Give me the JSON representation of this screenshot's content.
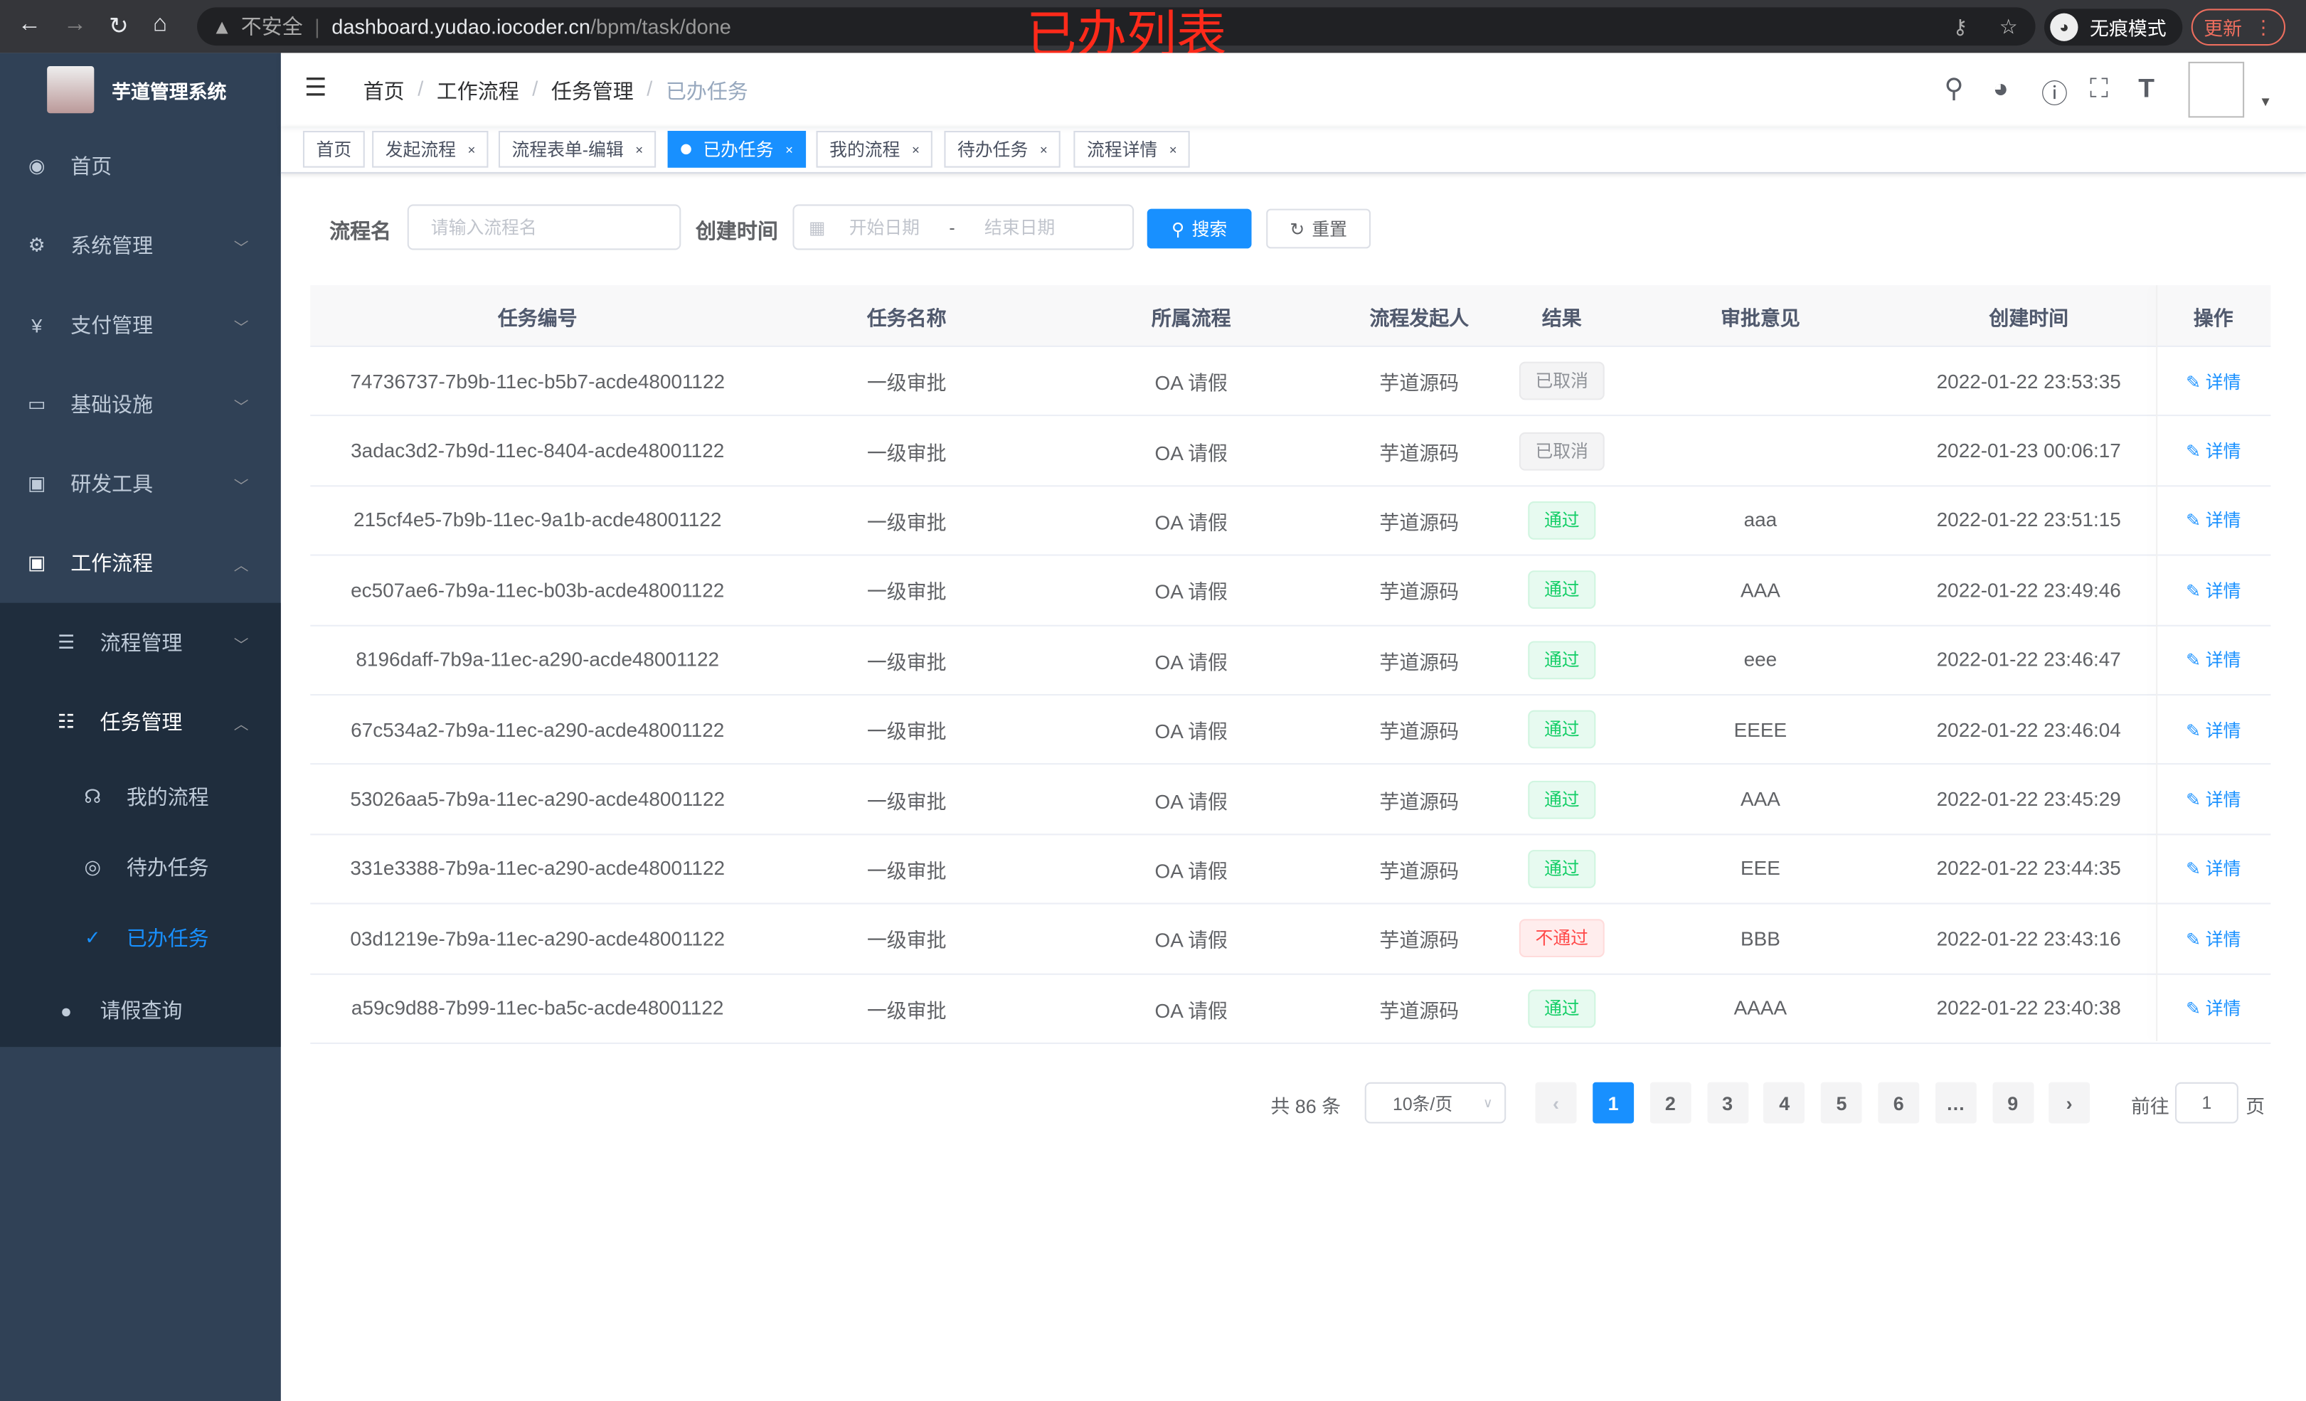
{
  "browser": {
    "url_host": "dashboard.yudao.iocoder.cn",
    "url_path": "/bpm/task/done",
    "security": "不安全",
    "incognito_label": "无痕模式",
    "update_label": "更新",
    "annotation": "已办列表"
  },
  "sidebar": {
    "app_title": "芋道管理系统",
    "items": [
      {
        "label": "首页",
        "icon": "dashboard-icon"
      },
      {
        "label": "系统管理",
        "icon": "gear-icon"
      },
      {
        "label": "支付管理",
        "icon": "yen-icon"
      },
      {
        "label": "基础设施",
        "icon": "monitor-icon"
      },
      {
        "label": "研发工具",
        "icon": "toolbox-icon"
      },
      {
        "label": "工作流程",
        "icon": "toolbox-icon"
      }
    ],
    "sub_items": [
      {
        "label": "流程管理",
        "icon": "tree-table-icon"
      },
      {
        "label": "任务管理",
        "icon": "list-icon"
      },
      {
        "label": "我的流程",
        "icon": "headset-icon"
      },
      {
        "label": "待办任务",
        "icon": "eye-icon"
      },
      {
        "label": "已办任务",
        "icon": "finish-icon"
      },
      {
        "label": "请假查询",
        "icon": "user-icon"
      }
    ]
  },
  "breadcrumb": [
    "首页",
    "工作流程",
    "任务管理",
    "已办任务"
  ],
  "tags": [
    "首页",
    "发起流程",
    "流程表单-编辑",
    "已办任务",
    "我的流程",
    "待办任务",
    "流程详情"
  ],
  "search": {
    "name_label": "流程名",
    "name_placeholder": "请输入流程名",
    "time_label": "创建时间",
    "start_placeholder": "开始日期",
    "range_sep": "-",
    "end_placeholder": "结束日期",
    "search_btn": "搜索",
    "reset_btn": "重置"
  },
  "table": {
    "headers": [
      "任务编号",
      "任务名称",
      "所属流程",
      "流程发起人",
      "结果",
      "审批意见",
      "创建时间",
      "操作"
    ],
    "action_label": "详情",
    "rows": [
      {
        "id": "74736737-7b9b-11ec-b5b7-acde48001122",
        "name": "一级审批",
        "process": "OA 请假",
        "starter": "芋道源码",
        "result": "已取消",
        "status": "cancel",
        "comment": "",
        "time": "2022-01-22 23:53:35"
      },
      {
        "id": "3adac3d2-7b9d-11ec-8404-acde48001122",
        "name": "一级审批",
        "process": "OA 请假",
        "starter": "芋道源码",
        "result": "已取消",
        "status": "cancel",
        "comment": "",
        "time": "2022-01-23 00:06:17"
      },
      {
        "id": "215cf4e5-7b9b-11ec-9a1b-acde48001122",
        "name": "一级审批",
        "process": "OA 请假",
        "starter": "芋道源码",
        "result": "通过",
        "status": "pass",
        "comment": "aaa",
        "time": "2022-01-22 23:51:15"
      },
      {
        "id": "ec507ae6-7b9a-11ec-b03b-acde48001122",
        "name": "一级审批",
        "process": "OA 请假",
        "starter": "芋道源码",
        "result": "通过",
        "status": "pass",
        "comment": "AAA",
        "time": "2022-01-22 23:49:46"
      },
      {
        "id": "8196daff-7b9a-11ec-a290-acde48001122",
        "name": "一级审批",
        "process": "OA 请假",
        "starter": "芋道源码",
        "result": "通过",
        "status": "pass",
        "comment": "eee",
        "time": "2022-01-22 23:46:47"
      },
      {
        "id": "67c534a2-7b9a-11ec-a290-acde48001122",
        "name": "一级审批",
        "process": "OA 请假",
        "starter": "芋道源码",
        "result": "通过",
        "status": "pass",
        "comment": "EEEE",
        "time": "2022-01-22 23:46:04"
      },
      {
        "id": "53026aa5-7b9a-11ec-a290-acde48001122",
        "name": "一级审批",
        "process": "OA 请假",
        "starter": "芋道源码",
        "result": "通过",
        "status": "pass",
        "comment": "AAA",
        "time": "2022-01-22 23:45:29"
      },
      {
        "id": "331e3388-7b9a-11ec-a290-acde48001122",
        "name": "一级审批",
        "process": "OA 请假",
        "starter": "芋道源码",
        "result": "通过",
        "status": "pass",
        "comment": "EEE",
        "time": "2022-01-22 23:44:35"
      },
      {
        "id": "03d1219e-7b9a-11ec-a290-acde48001122",
        "name": "一级审批",
        "process": "OA 请假",
        "starter": "芋道源码",
        "result": "不通过",
        "status": "fail",
        "comment": "BBB",
        "time": "2022-01-22 23:43:16"
      },
      {
        "id": "a59c9d88-7b99-11ec-ba5c-acde48001122",
        "name": "一级审批",
        "process": "OA 请假",
        "starter": "芋道源码",
        "result": "通过",
        "status": "pass",
        "comment": "AAAA",
        "time": "2022-01-22 23:40:38"
      }
    ]
  },
  "pagination": {
    "total": "共 86 条",
    "page_size": "10条/页",
    "pages": [
      "1",
      "2",
      "3",
      "4",
      "5",
      "6",
      "…",
      "9"
    ],
    "current": "1",
    "goto_label": "前往",
    "goto_value": "1",
    "page_suffix": "页"
  },
  "colors": {
    "primary": "#1890ff",
    "sidebar": "#304156",
    "pass": "#13ce66",
    "fail": "#ff4949",
    "annotation": "#ff2a1a"
  }
}
